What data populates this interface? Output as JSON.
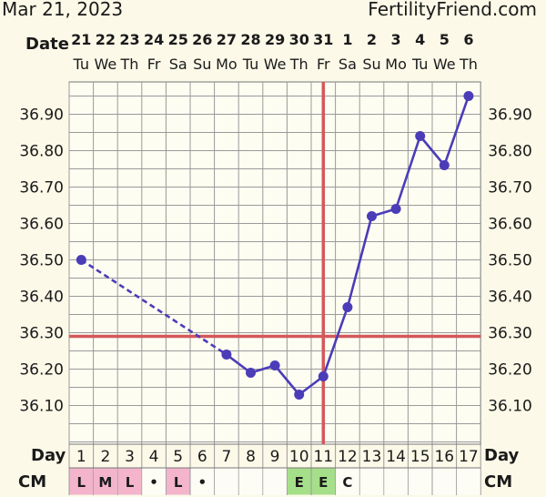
{
  "header": {
    "date_title": "Mar 21, 2023",
    "site": "FertilityFriend.com"
  },
  "chart_data": {
    "type": "line",
    "row_labels": {
      "date": "Date",
      "day": "Day",
      "cm": "CM"
    },
    "dates": [
      "21",
      "22",
      "23",
      "24",
      "25",
      "26",
      "27",
      "28",
      "29",
      "30",
      "31",
      "1",
      "2",
      "3",
      "4",
      "5",
      "6"
    ],
    "weekdays": [
      "Tu",
      "We",
      "Th",
      "Fr",
      "Sa",
      "Su",
      "Mo",
      "Tu",
      "We",
      "Th",
      "Fr",
      "Sa",
      "Su",
      "Mo",
      "Tu",
      "We",
      "Th"
    ],
    "cycle_days": [
      "1",
      "2",
      "3",
      "4",
      "5",
      "6",
      "7",
      "8",
      "9",
      "10",
      "11",
      "12",
      "13",
      "14",
      "15",
      "16",
      "17"
    ],
    "cm": [
      "L",
      "M",
      "L",
      "•",
      "L",
      "•",
      "",
      "",
      "",
      "E",
      "E",
      "C",
      "",
      "",
      "",
      "",
      ""
    ],
    "cm_colors": {
      "L": "#f3b4cc",
      "M": "#f3b4cc",
      "•": "#fdfdf5",
      "E": "#a6df8a",
      "C": "#fdfdf5",
      "": "#fdfdf5"
    },
    "temps": [
      36.5,
      null,
      null,
      null,
      null,
      null,
      36.24,
      36.19,
      36.21,
      36.13,
      36.18,
      36.37,
      36.62,
      36.64,
      36.84,
      36.76,
      36.95
    ],
    "yticks": [
      "36.10",
      "36.20",
      "36.30",
      "36.40",
      "36.50",
      "36.60",
      "36.70",
      "36.80",
      "36.90"
    ],
    "ylim": [
      36.02,
      37.05
    ],
    "coverline": 36.29,
    "ovulation_day_index": 10,
    "colors": {
      "line": "#4b3cb8",
      "coverline": "#d4585a",
      "grid": "#9a9a9a",
      "background": "#fcf9e8",
      "plot": "#fdfdf2"
    }
  }
}
